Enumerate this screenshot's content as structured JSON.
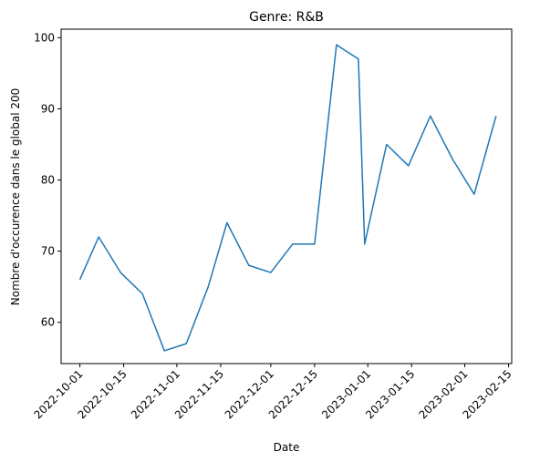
{
  "chart_data": {
    "type": "line",
    "title": "Genre: R&B",
    "xlabel": "Date",
    "ylabel": "Nombre d'occurence dans le global 200",
    "x_ticks": [
      "2022-10-01",
      "2022-10-15",
      "2022-11-01",
      "2022-11-15",
      "2022-12-01",
      "2022-12-15",
      "2023-01-01",
      "2023-01-15",
      "2023-02-01",
      "2023-02-15"
    ],
    "y_ticks": [
      60,
      70,
      80,
      90,
      100
    ],
    "xlim": [
      "2022-09-25",
      "2023-02-16"
    ],
    "ylim": [
      54.2,
      101.2
    ],
    "grid": false,
    "legend": "none",
    "series": [
      {
        "color": "#1f77b4",
        "x": [
          "2022-10-01",
          "2022-10-07",
          "2022-10-14",
          "2022-10-21",
          "2022-10-28",
          "2022-11-04",
          "2022-11-11",
          "2022-11-17",
          "2022-11-24",
          "2022-12-01",
          "2022-12-08",
          "2022-12-15",
          "2022-12-22",
          "2022-12-29",
          "2022-12-31",
          "2023-01-07",
          "2023-01-14",
          "2023-01-21",
          "2023-01-28",
          "2023-02-04",
          "2023-02-11"
        ],
        "y": [
          66,
          72,
          67,
          64,
          56,
          57,
          65,
          74,
          68,
          67,
          71,
          71,
          99,
          97,
          71,
          85,
          82,
          89,
          83,
          78,
          89
        ]
      }
    ]
  }
}
